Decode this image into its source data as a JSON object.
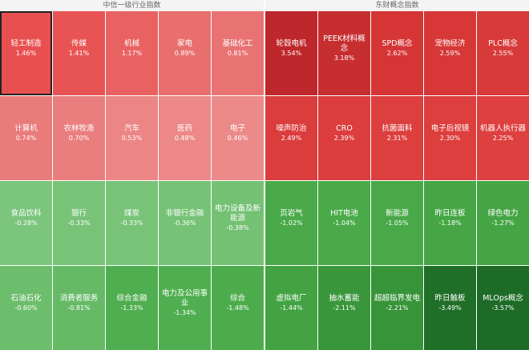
{
  "panels": [
    {
      "title": "中信一级行业指数",
      "cells": [
        {
          "name": "轻工制造",
          "change": "1.46%",
          "color": "#e85050",
          "selected": true
        },
        {
          "name": "传媒",
          "change": "1.41%",
          "color": "#e85454"
        },
        {
          "name": "机械",
          "change": "1.17%",
          "color": "#e96262"
        },
        {
          "name": "家电",
          "change": "0.89%",
          "color": "#e96f6f"
        },
        {
          "name": "基础化工",
          "change": "0.81%",
          "color": "#e97373"
        },
        {
          "name": "计算机",
          "change": "0.74%",
          "color": "#ea7b7b"
        },
        {
          "name": "农林牧渔",
          "change": "0.70%",
          "color": "#ea7e7e"
        },
        {
          "name": "汽车",
          "change": "0.53%",
          "color": "#ec8585"
        },
        {
          "name": "医药",
          "change": "0.48%",
          "color": "#ec8888"
        },
        {
          "name": "电子",
          "change": "0.46%",
          "color": "#ec8a8a"
        },
        {
          "name": "食品饮料",
          "change": "-0.28%",
          "color": "#7cc57c"
        },
        {
          "name": "银行",
          "change": "-0.33%",
          "color": "#78c378"
        },
        {
          "name": "煤炭",
          "change": "-0.33%",
          "color": "#78c378"
        },
        {
          "name": "非银行金融",
          "change": "-0.36%",
          "color": "#76c276"
        },
        {
          "name": "电力设备及新能源",
          "change": "-0.38%",
          "color": "#74c174"
        },
        {
          "name": "石油石化",
          "change": "-0.60%",
          "color": "#6cbd6c"
        },
        {
          "name": "消费者服务",
          "change": "-0.81%",
          "color": "#66ba66"
        },
        {
          "name": "综合金融",
          "change": "-1.33%",
          "color": "#4fae4f"
        },
        {
          "name": "电力及公用事业",
          "change": "-1.34%",
          "color": "#4fae4f"
        },
        {
          "name": "综合",
          "change": "-1.48%",
          "color": "#4cac4c"
        }
      ]
    },
    {
      "title": "东财概念指数",
      "cells": [
        {
          "name": "轮毂电机",
          "change": "3.54%",
          "color": "#be272b"
        },
        {
          "name": "PEEK材料概念",
          "change": "3.18%",
          "color": "#c72e30"
        },
        {
          "name": "SPD概念",
          "change": "2.62%",
          "color": "#d53535"
        },
        {
          "name": "宠物经济",
          "change": "2.59%",
          "color": "#d73737"
        },
        {
          "name": "PLC概念",
          "change": "2.55%",
          "color": "#d83939"
        },
        {
          "name": "噪声防治",
          "change": "2.49%",
          "color": "#db3c3c"
        },
        {
          "name": "CRO",
          "change": "2.39%",
          "color": "#dc3d3d"
        },
        {
          "name": "抗菌面料",
          "change": "2.31%",
          "color": "#dd3e3e"
        },
        {
          "name": "电子后视镜",
          "change": "2.30%",
          "color": "#dd3e3e"
        },
        {
          "name": "机器人执行器",
          "change": "2.25%",
          "color": "#de3f3f"
        },
        {
          "name": "页岩气",
          "change": "-1.02%",
          "color": "#4aaa4a"
        },
        {
          "name": "HIT电池",
          "change": "-1.04%",
          "color": "#4aaa4a"
        },
        {
          "name": "新能源",
          "change": "-1.05%",
          "color": "#49a949"
        },
        {
          "name": "昨日连板",
          "change": "-1.18%",
          "color": "#46a646"
        },
        {
          "name": "绿色电力",
          "change": "-1.27%",
          "color": "#45a545"
        },
        {
          "name": "虚拟电厂",
          "change": "-1.44%",
          "color": "#43a343"
        },
        {
          "name": "抽水蓄能",
          "change": "-2.11%",
          "color": "#3a963a"
        },
        {
          "name": "超超临界发电",
          "change": "-2.21%",
          "color": "#389438"
        },
        {
          "name": "昨日触板",
          "change": "-3.49%",
          "color": "#1f6f29"
        },
        {
          "name": "MLOps概念",
          "change": "-3.57%",
          "color": "#1d6b27"
        }
      ]
    }
  ]
}
